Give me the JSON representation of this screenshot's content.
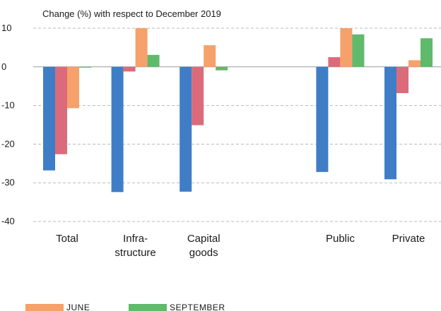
{
  "chart_data": {
    "type": "bar",
    "ylabel": "Change (%) with respect to December 2019",
    "ylim": [
      -40,
      10
    ],
    "yticks": [
      10,
      0,
      -10,
      -20,
      -30,
      -40
    ],
    "grid": true,
    "legend_position": "bottom-left",
    "categories": [
      {
        "lines": [
          "Total"
        ],
        "group": 0
      },
      {
        "lines": [
          "Infra-",
          "structure"
        ],
        "group": 1
      },
      {
        "lines": [
          "Capital",
          "goods"
        ],
        "group": 2
      },
      {
        "lines": [
          ""
        ],
        "group": 3
      },
      {
        "lines": [
          "Public"
        ],
        "group": 4
      },
      {
        "lines": [
          "Private"
        ],
        "group": 5
      }
    ],
    "series": [
      {
        "color": "#3f7dc7",
        "values": [
          -26.8,
          -32.4,
          -32.3,
          null,
          -27.2,
          -29.1
        ]
      },
      {
        "color": "#db6b7a",
        "values": [
          -22.6,
          -1.2,
          -15.1,
          null,
          2.5,
          -6.8
        ]
      },
      {
        "name": "JUNE",
        "color": "#f6a06a",
        "values": [
          -10.7,
          10.0,
          5.6,
          null,
          10.0,
          1.7
        ]
      },
      {
        "name": "SEPTEMBER",
        "color": "#5fba6b",
        "values": [
          -0.2,
          3.1,
          -0.9,
          null,
          8.4,
          7.4
        ]
      }
    ]
  }
}
